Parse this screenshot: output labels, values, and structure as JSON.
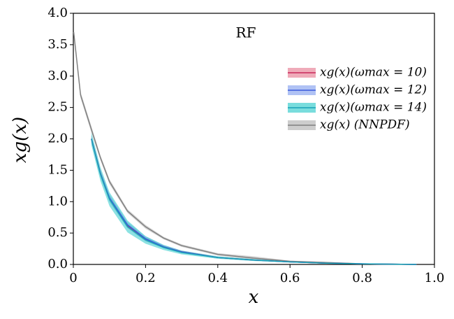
{
  "chart_data": {
    "type": "line",
    "title": "RF",
    "x_label": "x",
    "y_label": "xg(x)",
    "xlim": [
      0,
      1
    ],
    "ylim": [
      0,
      4
    ],
    "xticks": [
      {
        "value": 0,
        "label": "0"
      },
      0.2,
      0.4,
      0.6,
      0.8,
      {
        "value": 1,
        "label": "1.0"
      }
    ],
    "yticks": [
      {
        "value": 0,
        "label": "0.0"
      },
      0.5,
      {
        "value": 1,
        "label": "1.0"
      },
      1.5,
      {
        "value": 2,
        "label": "2.0"
      },
      2.5,
      {
        "value": 3,
        "label": "3.0"
      },
      3.5,
      {
        "value": 4,
        "label": "4.0"
      }
    ],
    "legend": "upper right",
    "series": [
      {
        "name": "xg(x)(ωmax = 10)",
        "color": "#c8285a",
        "band_color": "#e8879b",
        "x": [
          0.05,
          0.075,
          0.1,
          0.15,
          0.2,
          0.25,
          0.3,
          0.4,
          0.5,
          0.6,
          0.7,
          0.8,
          0.95
        ],
        "values": [
          2.0,
          1.45,
          1.05,
          0.62,
          0.4,
          0.28,
          0.2,
          0.11,
          0.07,
          0.04,
          0.02,
          0.01,
          0.0
        ],
        "lower": [
          1.95,
          1.4,
          1.0,
          0.58,
          0.37,
          0.26,
          0.18,
          0.1,
          0.06,
          0.035,
          0.015,
          0.005,
          0.0
        ],
        "upper": [
          2.05,
          1.5,
          1.1,
          0.66,
          0.43,
          0.3,
          0.22,
          0.12,
          0.08,
          0.045,
          0.025,
          0.015,
          0.005
        ]
      },
      {
        "name": "xg(x)(ωmax = 12)",
        "color": "#3b5bdb",
        "band_color": "#8fa8ef",
        "x": [
          0.05,
          0.075,
          0.1,
          0.15,
          0.2,
          0.25,
          0.3,
          0.4,
          0.5,
          0.6,
          0.7,
          0.8,
          0.95
        ],
        "values": [
          2.0,
          1.45,
          1.06,
          0.63,
          0.41,
          0.28,
          0.2,
          0.11,
          0.07,
          0.04,
          0.02,
          0.01,
          0.0
        ],
        "lower": [
          1.94,
          1.39,
          1.0,
          0.58,
          0.37,
          0.26,
          0.18,
          0.1,
          0.06,
          0.035,
          0.015,
          0.005,
          0.0
        ],
        "upper": [
          2.06,
          1.51,
          1.12,
          0.68,
          0.45,
          0.31,
          0.22,
          0.12,
          0.08,
          0.045,
          0.025,
          0.015,
          0.005
        ]
      },
      {
        "name": "xg(x)(ωmax = 14)",
        "color": "#17a2b8",
        "band_color": "#40cfcf",
        "x": [
          0.05,
          0.075,
          0.1,
          0.15,
          0.2,
          0.25,
          0.3,
          0.4,
          0.5,
          0.6,
          0.7,
          0.8,
          0.95
        ],
        "values": [
          2.0,
          1.44,
          1.04,
          0.6,
          0.39,
          0.27,
          0.19,
          0.11,
          0.07,
          0.04,
          0.02,
          0.01,
          0.0
        ],
        "lower": [
          1.9,
          1.33,
          0.93,
          0.51,
          0.33,
          0.23,
          0.16,
          0.09,
          0.055,
          0.03,
          0.015,
          0.005,
          0.0
        ],
        "upper": [
          2.1,
          1.55,
          1.15,
          0.7,
          0.45,
          0.31,
          0.22,
          0.13,
          0.085,
          0.05,
          0.025,
          0.015,
          0.005
        ]
      },
      {
        "name": "xg(x) (NNPDF)",
        "color": "#808080",
        "band_color": "#b8b8b8",
        "x": [
          0.001,
          0.02,
          0.05,
          0.075,
          0.1,
          0.15,
          0.2,
          0.25,
          0.3,
          0.4,
          0.5,
          0.6,
          0.7,
          0.8,
          0.95
        ],
        "values": [
          3.7,
          2.7,
          2.15,
          1.7,
          1.32,
          0.85,
          0.6,
          0.42,
          0.3,
          0.16,
          0.1,
          0.05,
          0.03,
          0.01,
          0.0
        ],
        "lower": [
          3.65,
          2.65,
          2.1,
          1.66,
          1.28,
          0.82,
          0.57,
          0.4,
          0.28,
          0.14,
          0.08,
          0.04,
          0.02,
          0.005,
          0.0
        ],
        "upper": [
          3.75,
          2.75,
          2.2,
          1.74,
          1.36,
          0.88,
          0.63,
          0.44,
          0.32,
          0.18,
          0.13,
          0.06,
          0.04,
          0.015,
          0.005
        ]
      }
    ]
  }
}
